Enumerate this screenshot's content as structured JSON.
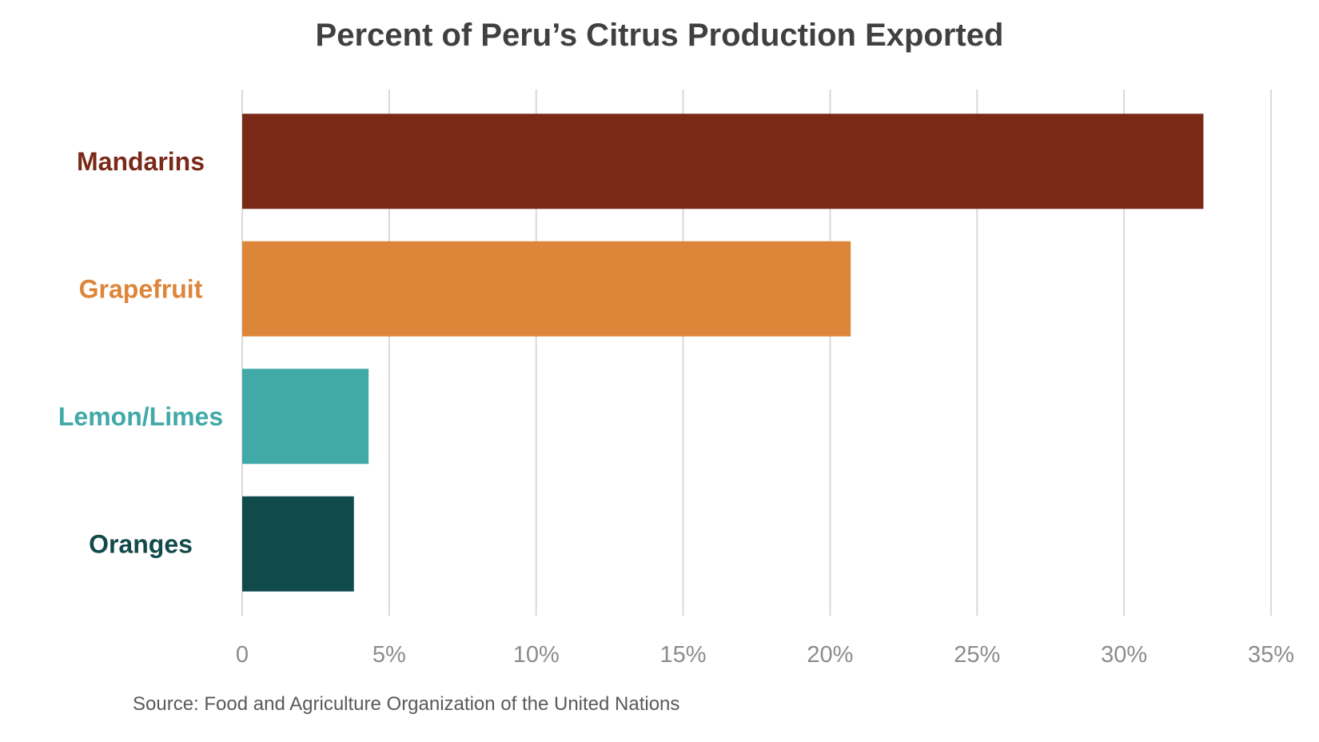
{
  "chart_data": {
    "type": "bar",
    "orientation": "horizontal",
    "title": "Percent of Peru’s Citrus Production Exported",
    "categories": [
      "Mandarins",
      "Grapefruit",
      "Lemon/Limes",
      "Oranges"
    ],
    "values": [
      32.7,
      20.7,
      4.3,
      3.8
    ],
    "unit": "percent",
    "colors": [
      "#7a2919",
      "#dd8539",
      "#41a9a7",
      "#114a4b"
    ],
    "xlim": [
      0,
      35
    ],
    "x_ticks": [
      0,
      5,
      10,
      15,
      20,
      25,
      30,
      35
    ],
    "x_tick_labels": [
      "0",
      "5%",
      "10%",
      "15%",
      "20%",
      "25%",
      "30%",
      "35%"
    ],
    "grid": "vertical",
    "legend": "none"
  },
  "source": "Source: Food and Agriculture Organization of the United Nations"
}
